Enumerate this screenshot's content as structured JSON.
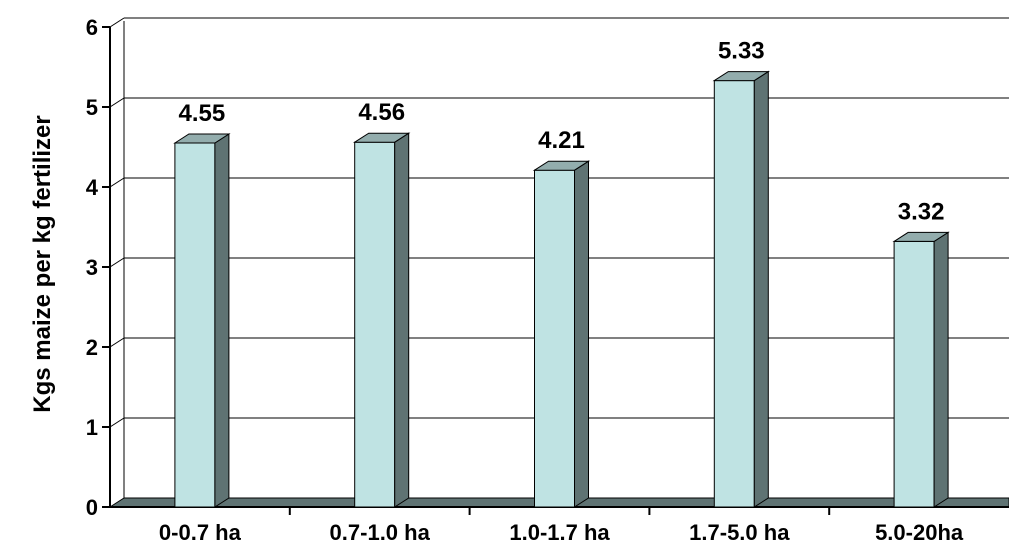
{
  "chart_data": {
    "type": "bar",
    "style": "3d-column",
    "title": "",
    "xlabel": "",
    "ylabel": "Kgs maize per kg fertilizer",
    "categories": [
      "0-0.7 ha",
      "0.7-1.0 ha",
      "1.0-1.7 ha",
      "1.7-5.0 ha",
      "5.0-20ha"
    ],
    "values": [
      4.55,
      4.56,
      4.21,
      5.33,
      3.32
    ],
    "data_labels": [
      "4.55",
      "4.56",
      "4.21",
      "5.33",
      "3.32"
    ],
    "ylim": [
      0,
      6
    ],
    "yticks": [
      0,
      1,
      2,
      3,
      4,
      5,
      6
    ],
    "grid": true,
    "legend": false,
    "colors": {
      "bar_front": "#bfe3e3",
      "bar_side": "#5f7373",
      "bar_top": "#93adad",
      "floor": "#5f7373",
      "gridline": "#000000"
    }
  }
}
